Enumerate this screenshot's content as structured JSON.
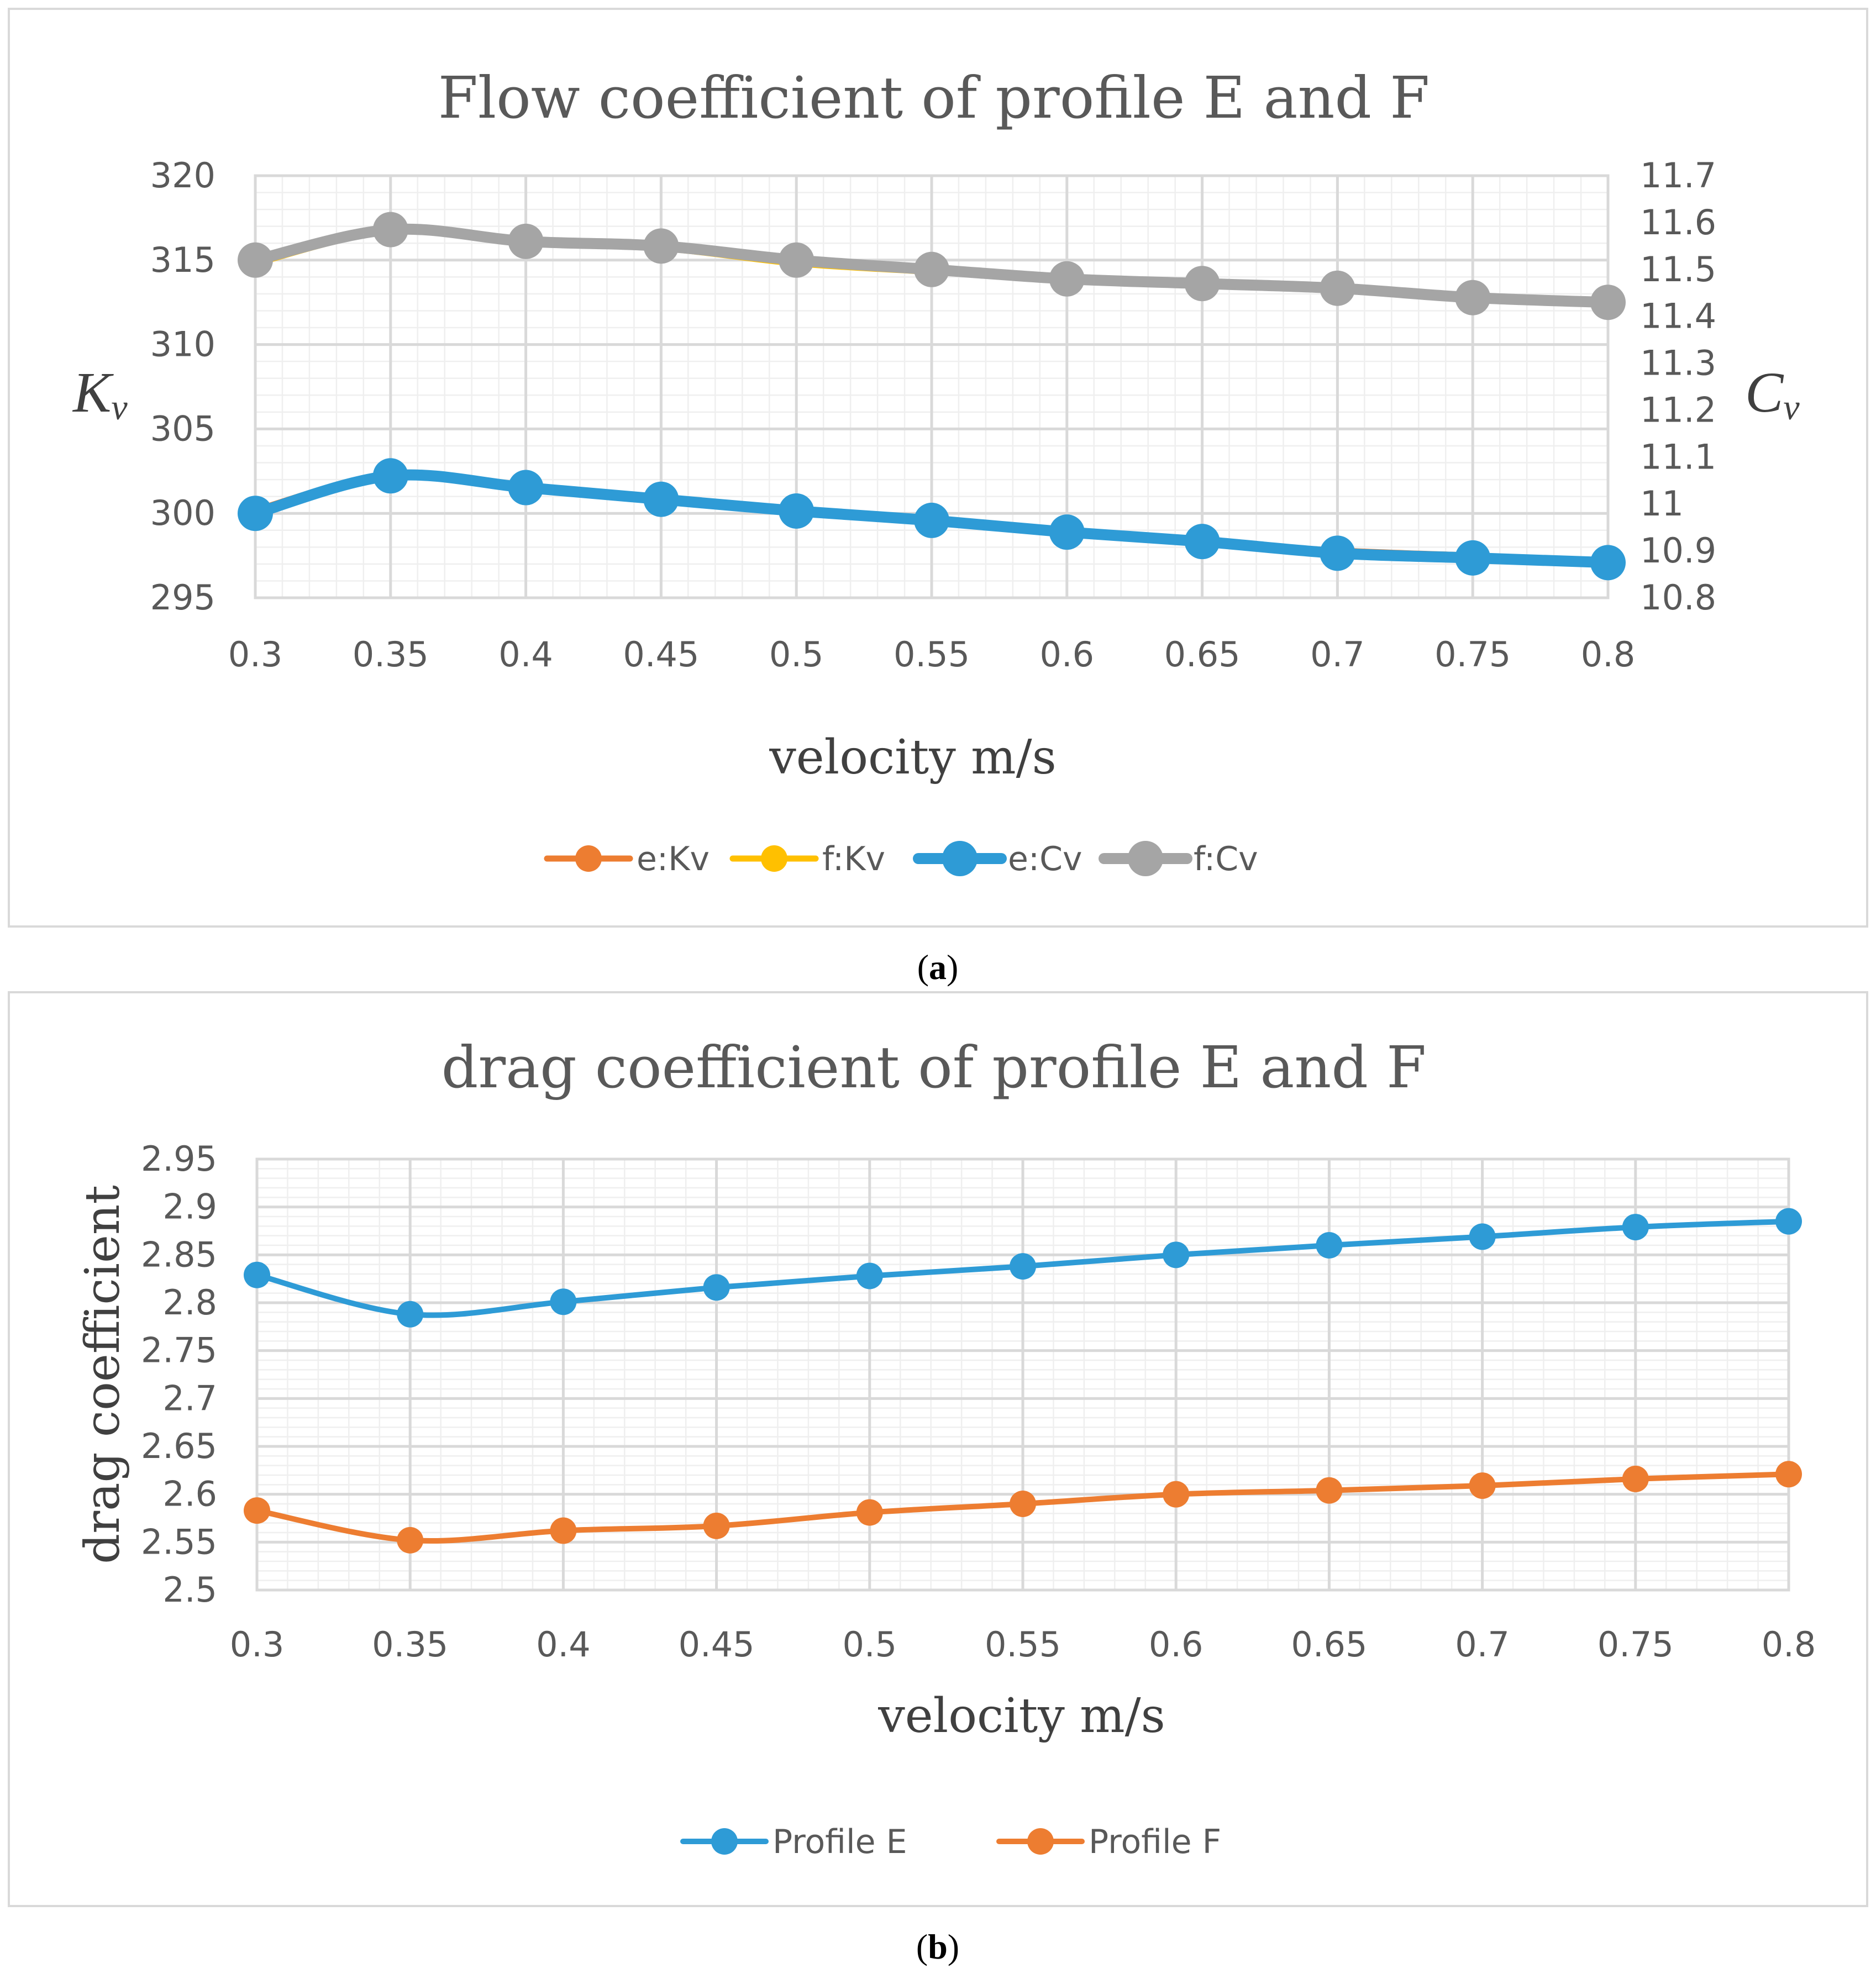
{
  "captions": {
    "a_open": "(",
    "a_letter": "a",
    "a_close": ")",
    "b_open": "(",
    "b_letter": "b",
    "b_close": ")"
  },
  "chart_data": [
    {
      "type": "line",
      "title": "Flow coefficient of profile E and F",
      "xlabel": "velocity m/s",
      "ylabel_main": "K",
      "ylabel_sub": "v",
      "y2label_main": "C",
      "y2label_sub": "v",
      "x": [
        0.3,
        0.35,
        0.4,
        0.45,
        0.5,
        0.55,
        0.6,
        0.65,
        0.7,
        0.75,
        0.8
      ],
      "x_tick_labels": [
        "0.3",
        "0.35",
        "0.4",
        "0.45",
        "0.5",
        "0.55",
        "0.6",
        "0.65",
        "0.7",
        "0.75",
        "0.8"
      ],
      "ylim": [
        295,
        320
      ],
      "y_ticks": [
        295,
        300,
        305,
        310,
        315,
        320
      ],
      "y_tick_labels": [
        "295",
        "300",
        "305",
        "310",
        "315",
        "320"
      ],
      "y2lim": [
        10.8,
        11.7
      ],
      "y2_ticks": [
        10.8,
        10.9,
        11.0,
        11.1,
        11.2,
        11.3,
        11.4,
        11.5,
        11.6,
        11.7
      ],
      "y2_tick_labels": [
        "10.8",
        "10.9",
        "11",
        "11.1",
        "11.2",
        "11.3",
        "11.4",
        "11.5",
        "11.6",
        "11.7"
      ],
      "grid": true,
      "legend_position": "bottom",
      "series": [
        {
          "name": "e:Kv",
          "axis": "left",
          "color": "#ed7d31",
          "width": 11,
          "marker": 24,
          "values": [
            300.2,
            302.3,
            301.6,
            300.9,
            300.2,
            299.6,
            298.9,
            298.3,
            297.8,
            297.5,
            297.2
          ]
        },
        {
          "name": "f:Kv",
          "axis": "left",
          "color": "#ffc000",
          "width": 11,
          "marker": 24,
          "values": [
            314.8,
            316.7,
            316.0,
            315.7,
            314.8,
            314.3,
            313.8,
            313.5,
            313.2,
            312.7,
            312.4
          ]
        },
        {
          "name": "e:Cv",
          "axis": "right",
          "color": "#2e9bd6",
          "width": 20,
          "marker": 32,
          "values": [
            10.98,
            11.06,
            11.035,
            11.01,
            10.985,
            10.965,
            10.94,
            10.92,
            10.895,
            10.885,
            10.875
          ]
        },
        {
          "name": "f:Cv",
          "axis": "right",
          "color": "#a5a5a5",
          "width": 20,
          "marker": 32,
          "values": [
            11.52,
            11.585,
            11.56,
            11.55,
            11.52,
            11.5,
            11.48,
            11.47,
            11.46,
            11.44,
            11.43
          ]
        }
      ]
    },
    {
      "type": "line",
      "title": "drag coefficient of profile E and F",
      "xlabel": "velocity m/s",
      "ylabel": "drag coefficient",
      "x": [
        0.3,
        0.35,
        0.4,
        0.45,
        0.5,
        0.55,
        0.6,
        0.65,
        0.7,
        0.75,
        0.8
      ],
      "x_tick_labels": [
        "0.3",
        "0.35",
        "0.4",
        "0.45",
        "0.5",
        "0.55",
        "0.6",
        "0.65",
        "0.7",
        "0.75",
        "0.8"
      ],
      "ylim": [
        2.5,
        2.95
      ],
      "y_ticks": [
        2.5,
        2.55,
        2.6,
        2.65,
        2.7,
        2.75,
        2.8,
        2.85,
        2.9,
        2.95
      ],
      "y_tick_labels": [
        "2.5",
        "2.55",
        "2.6",
        "2.65",
        "2.7",
        "2.75",
        "2.8",
        "2.85",
        "2.9",
        "2.95"
      ],
      "grid": true,
      "legend_position": "bottom",
      "series": [
        {
          "name": "Profile E",
          "color": "#2e9bd6",
          "width": 10,
          "marker": 24,
          "values": [
            2.829,
            2.788,
            2.801,
            2.816,
            2.828,
            2.838,
            2.85,
            2.86,
            2.869,
            2.879,
            2.885
          ]
        },
        {
          "name": "Profile F",
          "color": "#ed7d31",
          "width": 10,
          "marker": 24,
          "values": [
            2.583,
            2.552,
            2.562,
            2.567,
            2.581,
            2.59,
            2.6,
            2.604,
            2.609,
            2.616,
            2.621
          ]
        }
      ]
    }
  ]
}
